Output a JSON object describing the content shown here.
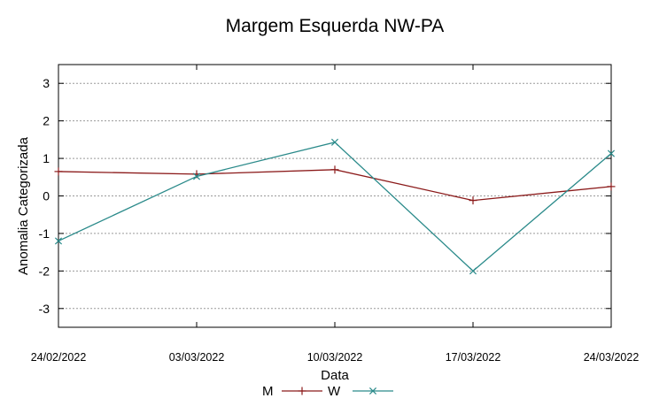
{
  "chart_data": {
    "type": "line",
    "title": "Margem Esquerda NW-PA",
    "xlabel": "Data",
    "ylabel": "Anomalia Categorizada",
    "categories": [
      "24/02/2022",
      "03/03/2022",
      "10/03/2022",
      "17/03/2022",
      "24/03/2022"
    ],
    "ylim": [
      -3.5,
      3.5
    ],
    "yticks": [
      -3,
      -2,
      -1,
      0,
      1,
      2,
      3
    ],
    "grid": true,
    "legend": "bottom-center",
    "series": [
      {
        "name": "M",
        "marker": "+",
        "color": "#8b1a1a",
        "values": [
          0.65,
          0.58,
          0.7,
          -0.12,
          0.25
        ]
      },
      {
        "name": "W",
        "marker": "x",
        "color": "#2a8a8a",
        "values": [
          -1.2,
          0.52,
          1.43,
          -2.0,
          1.13
        ]
      }
    ]
  }
}
